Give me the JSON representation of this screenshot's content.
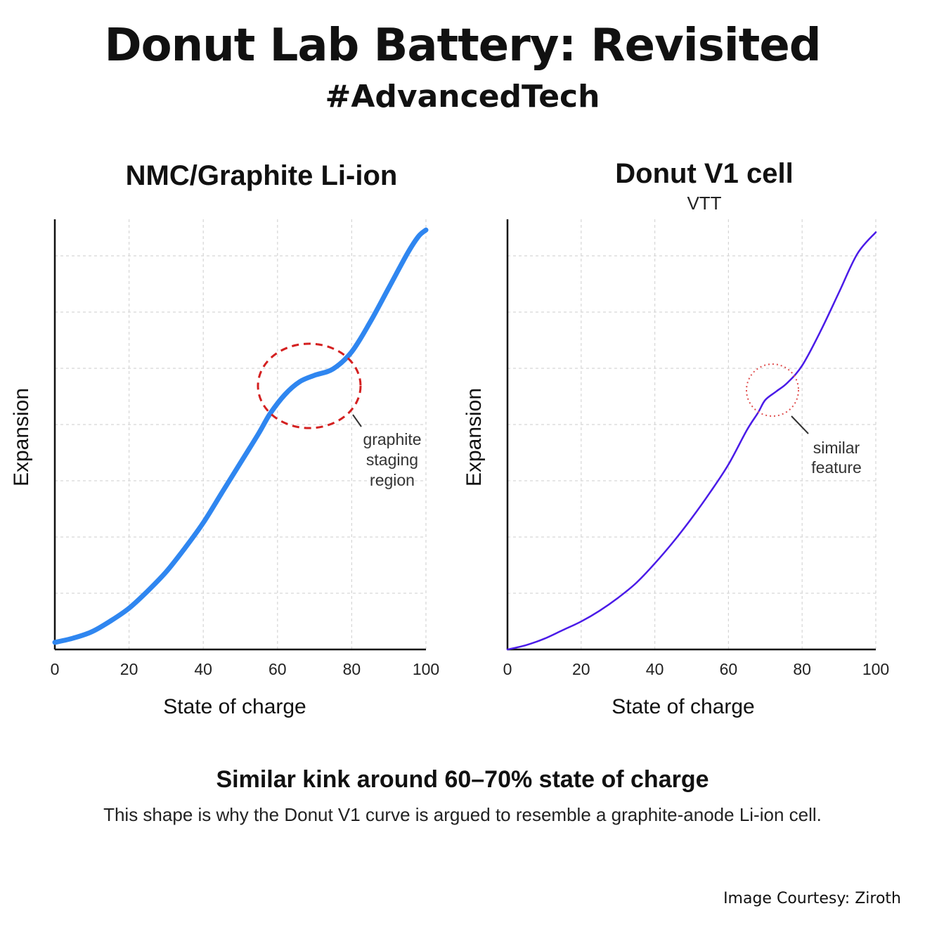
{
  "header": {
    "title": "Donut Lab Battery: Revisited",
    "hashtag": "#AdvancedTech"
  },
  "chart_data": [
    {
      "type": "line",
      "title": "NMC/Graphite Li-ion",
      "subtitle": "",
      "xlabel": "State of charge",
      "ylabel": "Expansion",
      "xlim": [
        0,
        100
      ],
      "ylim": [
        0,
        1
      ],
      "xticks": [
        "0",
        "20",
        "40",
        "60",
        "80",
        "100"
      ],
      "grid": true,
      "color": "#2f86f0",
      "series": [
        {
          "x": [
            0,
            5,
            10,
            15,
            20,
            25,
            30,
            35,
            40,
            45,
            50,
            55,
            58,
            62,
            66,
            70,
            75,
            80,
            85,
            90,
            95,
            98,
            100
          ],
          "y": [
            0.01,
            0.02,
            0.035,
            0.06,
            0.09,
            0.13,
            0.175,
            0.23,
            0.29,
            0.36,
            0.43,
            0.5,
            0.545,
            0.59,
            0.62,
            0.635,
            0.65,
            0.69,
            0.76,
            0.84,
            0.92,
            0.96,
            0.975
          ]
        }
      ],
      "annotation": {
        "shape": "dashed-ellipse",
        "color": "#d42020",
        "label": [
          "graphite",
          "staging",
          "region"
        ]
      }
    },
    {
      "type": "line",
      "title": "Donut V1 cell",
      "subtitle": "VTT",
      "xlabel": "State of charge",
      "ylabel": "Expansion",
      "xlim": [
        0,
        100
      ],
      "ylim": [
        0,
        1
      ],
      "xticks": [
        "0",
        "20",
        "40",
        "60",
        "80",
        "100"
      ],
      "grid": true,
      "color": "#4a1be8",
      "series": [
        {
          "x": [
            0,
            5,
            10,
            15,
            20,
            25,
            30,
            35,
            40,
            45,
            50,
            55,
            60,
            65,
            68,
            70,
            73,
            76,
            80,
            85,
            90,
            95,
            100
          ],
          "y": [
            0.0,
            0.01,
            0.025,
            0.045,
            0.065,
            0.09,
            0.12,
            0.155,
            0.2,
            0.25,
            0.305,
            0.365,
            0.43,
            0.51,
            0.55,
            0.58,
            0.6,
            0.62,
            0.66,
            0.74,
            0.83,
            0.92,
            0.97
          ]
        }
      ],
      "annotation": {
        "shape": "dotted-circle",
        "color": "#e05050",
        "label": [
          "similar",
          "feature"
        ]
      }
    }
  ],
  "footer": {
    "headline": "Similar kink around 60–70% state of charge",
    "caption": "This shape is why the Donut V1 curve is argued to resemble a graphite-anode Li-ion cell.",
    "credit": "Image Courtesy: Ziroth"
  }
}
